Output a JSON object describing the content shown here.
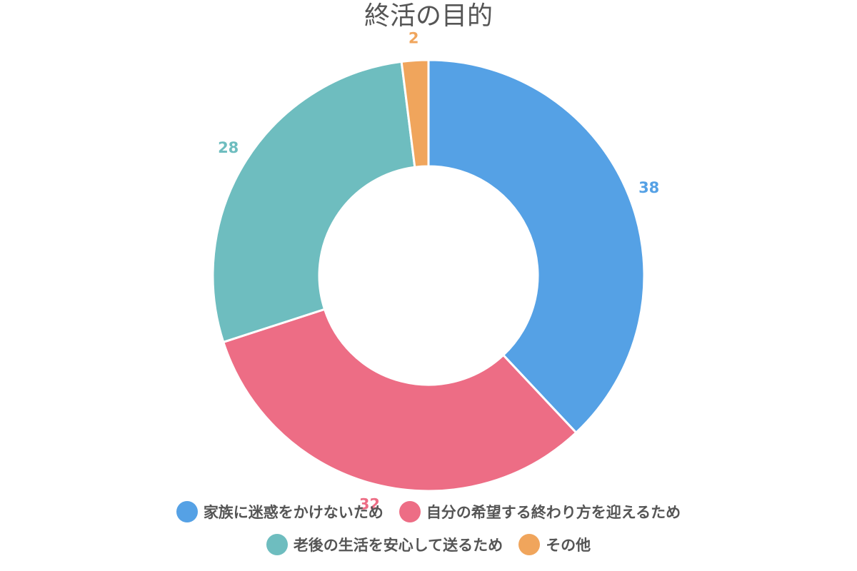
{
  "chart_data": {
    "type": "pie",
    "variant": "donut",
    "title": "終活の目的",
    "categories": [
      "家族に迷惑をかけないため",
      "自分の希望する終わり方を迎えるため",
      "老後の生活を安心して送るため",
      "その他"
    ],
    "values": [
      38,
      32,
      28,
      2
    ],
    "colors": [
      "#55A1E5",
      "#ED6D85",
      "#6EBDBF",
      "#F0A55C"
    ],
    "data_labels": [
      "38",
      "32",
      "28",
      "2"
    ],
    "legend_position": "bottom"
  }
}
